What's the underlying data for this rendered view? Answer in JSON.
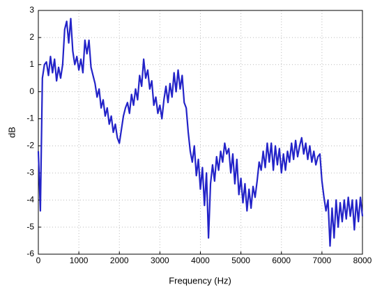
{
  "chart_data": {
    "type": "line",
    "xlabel": "Frequency (Hz)",
    "ylabel": "dB",
    "xlim": [
      0,
      8000
    ],
    "xticks": [
      0,
      1000,
      2000,
      3000,
      4000,
      5000,
      6000,
      7000,
      8000
    ],
    "ylim": [
      -6,
      3
    ],
    "yticks": [
      -6,
      -5,
      -4,
      -3,
      -2,
      -1,
      0,
      1,
      2,
      3
    ],
    "grid": true,
    "x": [
      0,
      50,
      100,
      150,
      200,
      250,
      300,
      350,
      400,
      450,
      500,
      550,
      600,
      650,
      700,
      750,
      800,
      850,
      900,
      950,
      1000,
      1050,
      1100,
      1150,
      1200,
      1250,
      1300,
      1350,
      1400,
      1450,
      1500,
      1550,
      1600,
      1650,
      1700,
      1750,
      1800,
      1850,
      1900,
      1950,
      2000,
      2050,
      2100,
      2150,
      2200,
      2250,
      2300,
      2350,
      2400,
      2450,
      2500,
      2550,
      2600,
      2650,
      2700,
      2750,
      2800,
      2850,
      2900,
      2950,
      3000,
      3050,
      3100,
      3150,
      3200,
      3250,
      3300,
      3350,
      3400,
      3450,
      3500,
      3550,
      3600,
      3650,
      3700,
      3750,
      3800,
      3850,
      3900,
      3950,
      4000,
      4050,
      4100,
      4150,
      4200,
      4250,
      4300,
      4350,
      4400,
      4450,
      4500,
      4550,
      4600,
      4650,
      4700,
      4750,
      4800,
      4850,
      4900,
      4950,
      5000,
      5050,
      5100,
      5150,
      5200,
      5250,
      5300,
      5350,
      5400,
      5450,
      5500,
      5550,
      5600,
      5650,
      5700,
      5750,
      5800,
      5850,
      5900,
      5950,
      6000,
      6050,
      6100,
      6150,
      6200,
      6250,
      6300,
      6350,
      6400,
      6450,
      6500,
      6550,
      6600,
      6650,
      6700,
      6750,
      6800,
      6850,
      6900,
      6950,
      7000,
      7050,
      7100,
      7150,
      7200,
      7250,
      7300,
      7350,
      7400,
      7450,
      7500,
      7550,
      7600,
      7650,
      7700,
      7750,
      7800,
      7850,
      7900,
      7950,
      8000
    ],
    "series": [
      {
        "name": "dB",
        "color": "#2323c8",
        "values": [
          -2.2,
          -4.4,
          0.5,
          1.0,
          1.1,
          0.6,
          1.3,
          0.7,
          1.2,
          0.4,
          0.9,
          0.5,
          1.0,
          2.3,
          2.6,
          1.8,
          2.7,
          1.5,
          1.0,
          1.3,
          0.8,
          1.2,
          0.7,
          1.9,
          1.4,
          1.9,
          0.9,
          0.6,
          0.3,
          -0.2,
          0.1,
          -0.6,
          -0.3,
          -0.9,
          -0.6,
          -1.2,
          -0.9,
          -1.5,
          -1.2,
          -1.7,
          -1.9,
          -1.4,
          -0.9,
          -0.6,
          -0.4,
          -0.8,
          -0.1,
          -0.5,
          0.1,
          -0.3,
          0.6,
          0.2,
          1.2,
          0.5,
          0.8,
          0.1,
          0.4,
          -0.5,
          -0.2,
          -0.8,
          -0.5,
          -1.0,
          -0.3,
          0.2,
          -0.4,
          0.3,
          -0.2,
          0.7,
          0.0,
          0.8,
          0.1,
          0.6,
          -0.4,
          -0.6,
          -1.5,
          -2.2,
          -2.6,
          -2.0,
          -3.1,
          -2.5,
          -3.6,
          -2.8,
          -4.2,
          -3.0,
          -5.4,
          -3.4,
          -2.7,
          -3.3,
          -2.4,
          -2.9,
          -2.2,
          -2.6,
          -1.9,
          -2.3,
          -2.1,
          -3.0,
          -2.3,
          -3.4,
          -2.5,
          -3.8,
          -3.2,
          -4.1,
          -3.4,
          -4.4,
          -3.6,
          -4.3,
          -3.5,
          -3.9,
          -3.3,
          -2.6,
          -2.9,
          -2.2,
          -2.8,
          -1.9,
          -2.6,
          -1.9,
          -2.9,
          -2.0,
          -2.7,
          -2.1,
          -3.0,
          -2.3,
          -2.9,
          -2.2,
          -2.6,
          -1.9,
          -2.5,
          -1.8,
          -2.4,
          -2.0,
          -1.7,
          -2.3,
          -1.9,
          -2.5,
          -2.0,
          -2.6,
          -2.2,
          -2.7,
          -2.4,
          -2.3,
          -3.3,
          -3.9,
          -4.4,
          -4.0,
          -5.7,
          -4.3,
          -5.4,
          -4.0,
          -5.0,
          -4.1,
          -4.8,
          -4.0,
          -4.7,
          -3.9,
          -4.6,
          -4.0,
          -5.1,
          -4.0,
          -4.8,
          -3.9,
          -4.6
        ]
      }
    ]
  }
}
